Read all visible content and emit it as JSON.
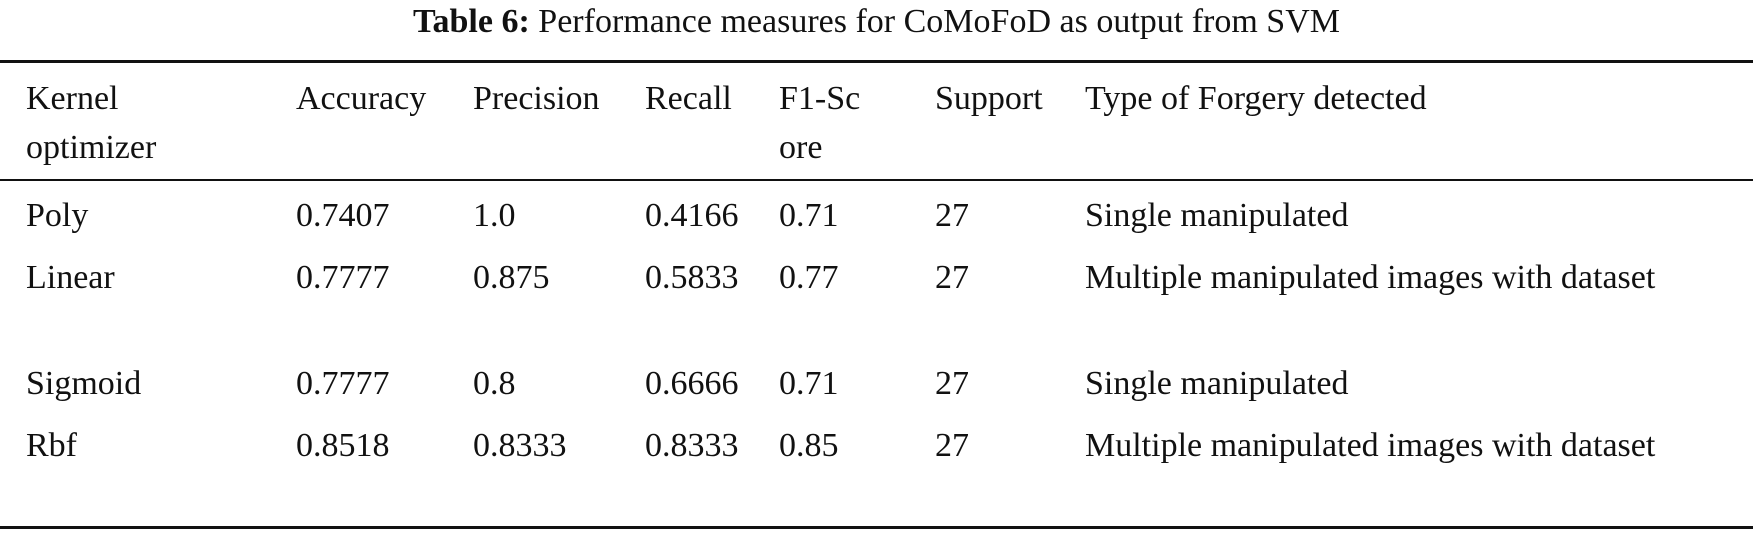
{
  "caption": {
    "label": "Table 6:",
    "text": "Performance measures for CoMoFoD as output from SVM"
  },
  "table": {
    "headers": [
      "Kernel optimizer",
      "Accuracy",
      "Precision",
      "Recall",
      "F1-Score",
      "Support",
      "Type of Forgery detected"
    ],
    "rows": [
      [
        "Poly",
        "0.7407",
        "1.0",
        "0.4166",
        "0.71",
        "27",
        "Single manipulated"
      ],
      [
        "Linear",
        "0.7777",
        "0.875",
        "0.5833",
        "0.77",
        "27",
        "Multiple manipulated images with dataset"
      ],
      [
        "Sigmoid",
        "0.7777",
        "0.8",
        "0.6666",
        "0.71",
        "27",
        "Single manipulated"
      ],
      [
        "Rbf",
        "0.8518",
        "0.8333",
        "0.8333",
        "0.85",
        "27",
        "Multiple manipulated images with dataset"
      ]
    ]
  }
}
